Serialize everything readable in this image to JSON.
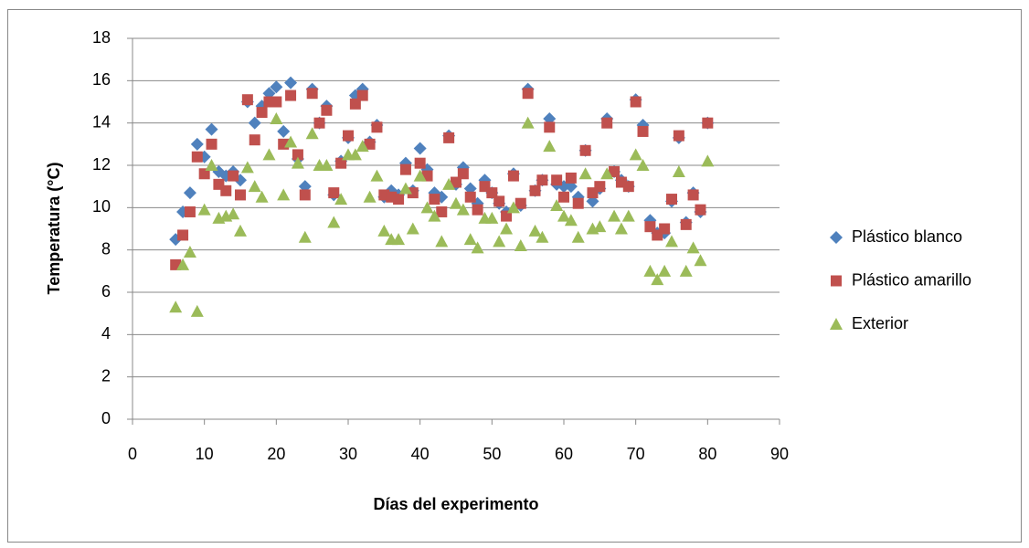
{
  "chart_data": {
    "type": "scatter",
    "x_label": "Días del experimento",
    "y_label": "Temperatura (°C)",
    "xlim": [
      0,
      90
    ],
    "xticks": [
      0,
      10,
      20,
      30,
      40,
      50,
      60,
      70,
      80,
      90
    ],
    "ylim": [
      0,
      18
    ],
    "yticks": [
      0,
      2,
      4,
      6,
      8,
      10,
      12,
      14,
      16,
      18
    ],
    "grid": true,
    "legend": "right",
    "x": [
      6,
      7,
      8,
      9,
      10,
      11,
      12,
      13,
      14,
      15,
      16,
      17,
      18,
      19,
      20,
      21,
      22,
      23,
      24,
      25,
      26,
      27,
      28,
      29,
      30,
      31,
      32,
      33,
      34,
      35,
      36,
      37,
      38,
      39,
      40,
      41,
      42,
      43,
      44,
      45,
      46,
      47,
      48,
      49,
      50,
      51,
      52,
      53,
      54,
      55,
      56,
      57,
      58,
      59,
      60,
      61,
      62,
      63,
      64,
      65,
      66,
      67,
      68,
      69,
      70,
      71,
      72,
      73,
      74,
      75,
      76,
      77,
      78,
      79,
      80
    ],
    "series": [
      {
        "name": "Plástico blanco",
        "color": "#4f81bd",
        "marker": "diamond",
        "values": [
          8.5,
          9.8,
          10.7,
          13.0,
          12.4,
          13.7,
          11.7,
          11.5,
          11.7,
          11.3,
          15.0,
          14.0,
          14.8,
          15.4,
          15.7,
          13.6,
          15.9,
          12.3,
          11.0,
          15.6,
          14.0,
          14.8,
          10.6,
          12.2,
          13.3,
          15.3,
          15.6,
          13.1,
          13.9,
          10.5,
          10.8,
          10.6,
          12.1,
          10.8,
          12.8,
          11.8,
          10.7,
          10.5,
          13.4,
          11.1,
          11.9,
          10.9,
          10.2,
          11.3,
          10.7,
          10.2,
          9.8,
          11.6,
          10.1,
          15.6,
          10.8,
          11.3,
          14.2,
          11.1,
          11.0,
          11.0,
          10.5,
          12.7,
          10.3,
          10.9,
          14.2,
          11.7,
          11.3,
          11.0,
          15.1,
          13.9,
          9.4,
          8.8,
          8.8,
          10.3,
          13.3,
          9.3,
          10.7,
          9.8,
          14.0
        ]
      },
      {
        "name": "Plástico amarillo",
        "color": "#c0504d",
        "marker": "square",
        "values": [
          7.3,
          8.7,
          9.8,
          12.4,
          11.6,
          13.0,
          11.1,
          10.8,
          11.5,
          10.6,
          15.1,
          13.2,
          14.5,
          15.0,
          15.0,
          13.0,
          15.3,
          12.5,
          10.6,
          15.4,
          14.0,
          14.6,
          10.7,
          12.1,
          13.4,
          14.9,
          15.3,
          13.0,
          13.8,
          10.6,
          10.5,
          10.4,
          11.8,
          10.7,
          12.1,
          11.5,
          10.4,
          9.8,
          13.3,
          11.2,
          11.6,
          10.5,
          9.9,
          11.0,
          10.7,
          10.3,
          9.6,
          11.5,
          10.2,
          15.4,
          10.8,
          11.3,
          13.8,
          11.3,
          10.5,
          11.4,
          10.2,
          12.7,
          10.7,
          11.0,
          14.0,
          11.7,
          11.2,
          11.0,
          15.0,
          13.6,
          9.1,
          8.7,
          9.0,
          10.4,
          13.4,
          9.2,
          10.6,
          9.9,
          14.0
        ]
      },
      {
        "name": "Exterior",
        "color": "#9bbb59",
        "marker": "triangle",
        "values": [
          5.3,
          7.3,
          7.9,
          5.1,
          9.9,
          12.0,
          9.5,
          9.6,
          9.7,
          8.9,
          11.9,
          11.0,
          10.5,
          12.5,
          14.2,
          10.6,
          13.1,
          12.1,
          8.6,
          13.5,
          12.0,
          12.0,
          9.3,
          10.4,
          12.5,
          12.5,
          12.9,
          10.5,
          11.5,
          8.9,
          8.5,
          8.5,
          10.9,
          9.0,
          11.5,
          10.0,
          9.6,
          8.4,
          11.1,
          10.2,
          9.9,
          8.5,
          8.1,
          9.5,
          9.5,
          8.4,
          9.0,
          10.0,
          8.2,
          14.0,
          8.9,
          8.6,
          12.9,
          10.1,
          9.6,
          9.4,
          8.6,
          11.6,
          9.0,
          9.1,
          11.6,
          9.6,
          9.0,
          9.6,
          12.5,
          12.0,
          7.0,
          6.6,
          7.0,
          8.4,
          11.7,
          7.0,
          8.1,
          7.5,
          12.2
        ]
      }
    ]
  }
}
